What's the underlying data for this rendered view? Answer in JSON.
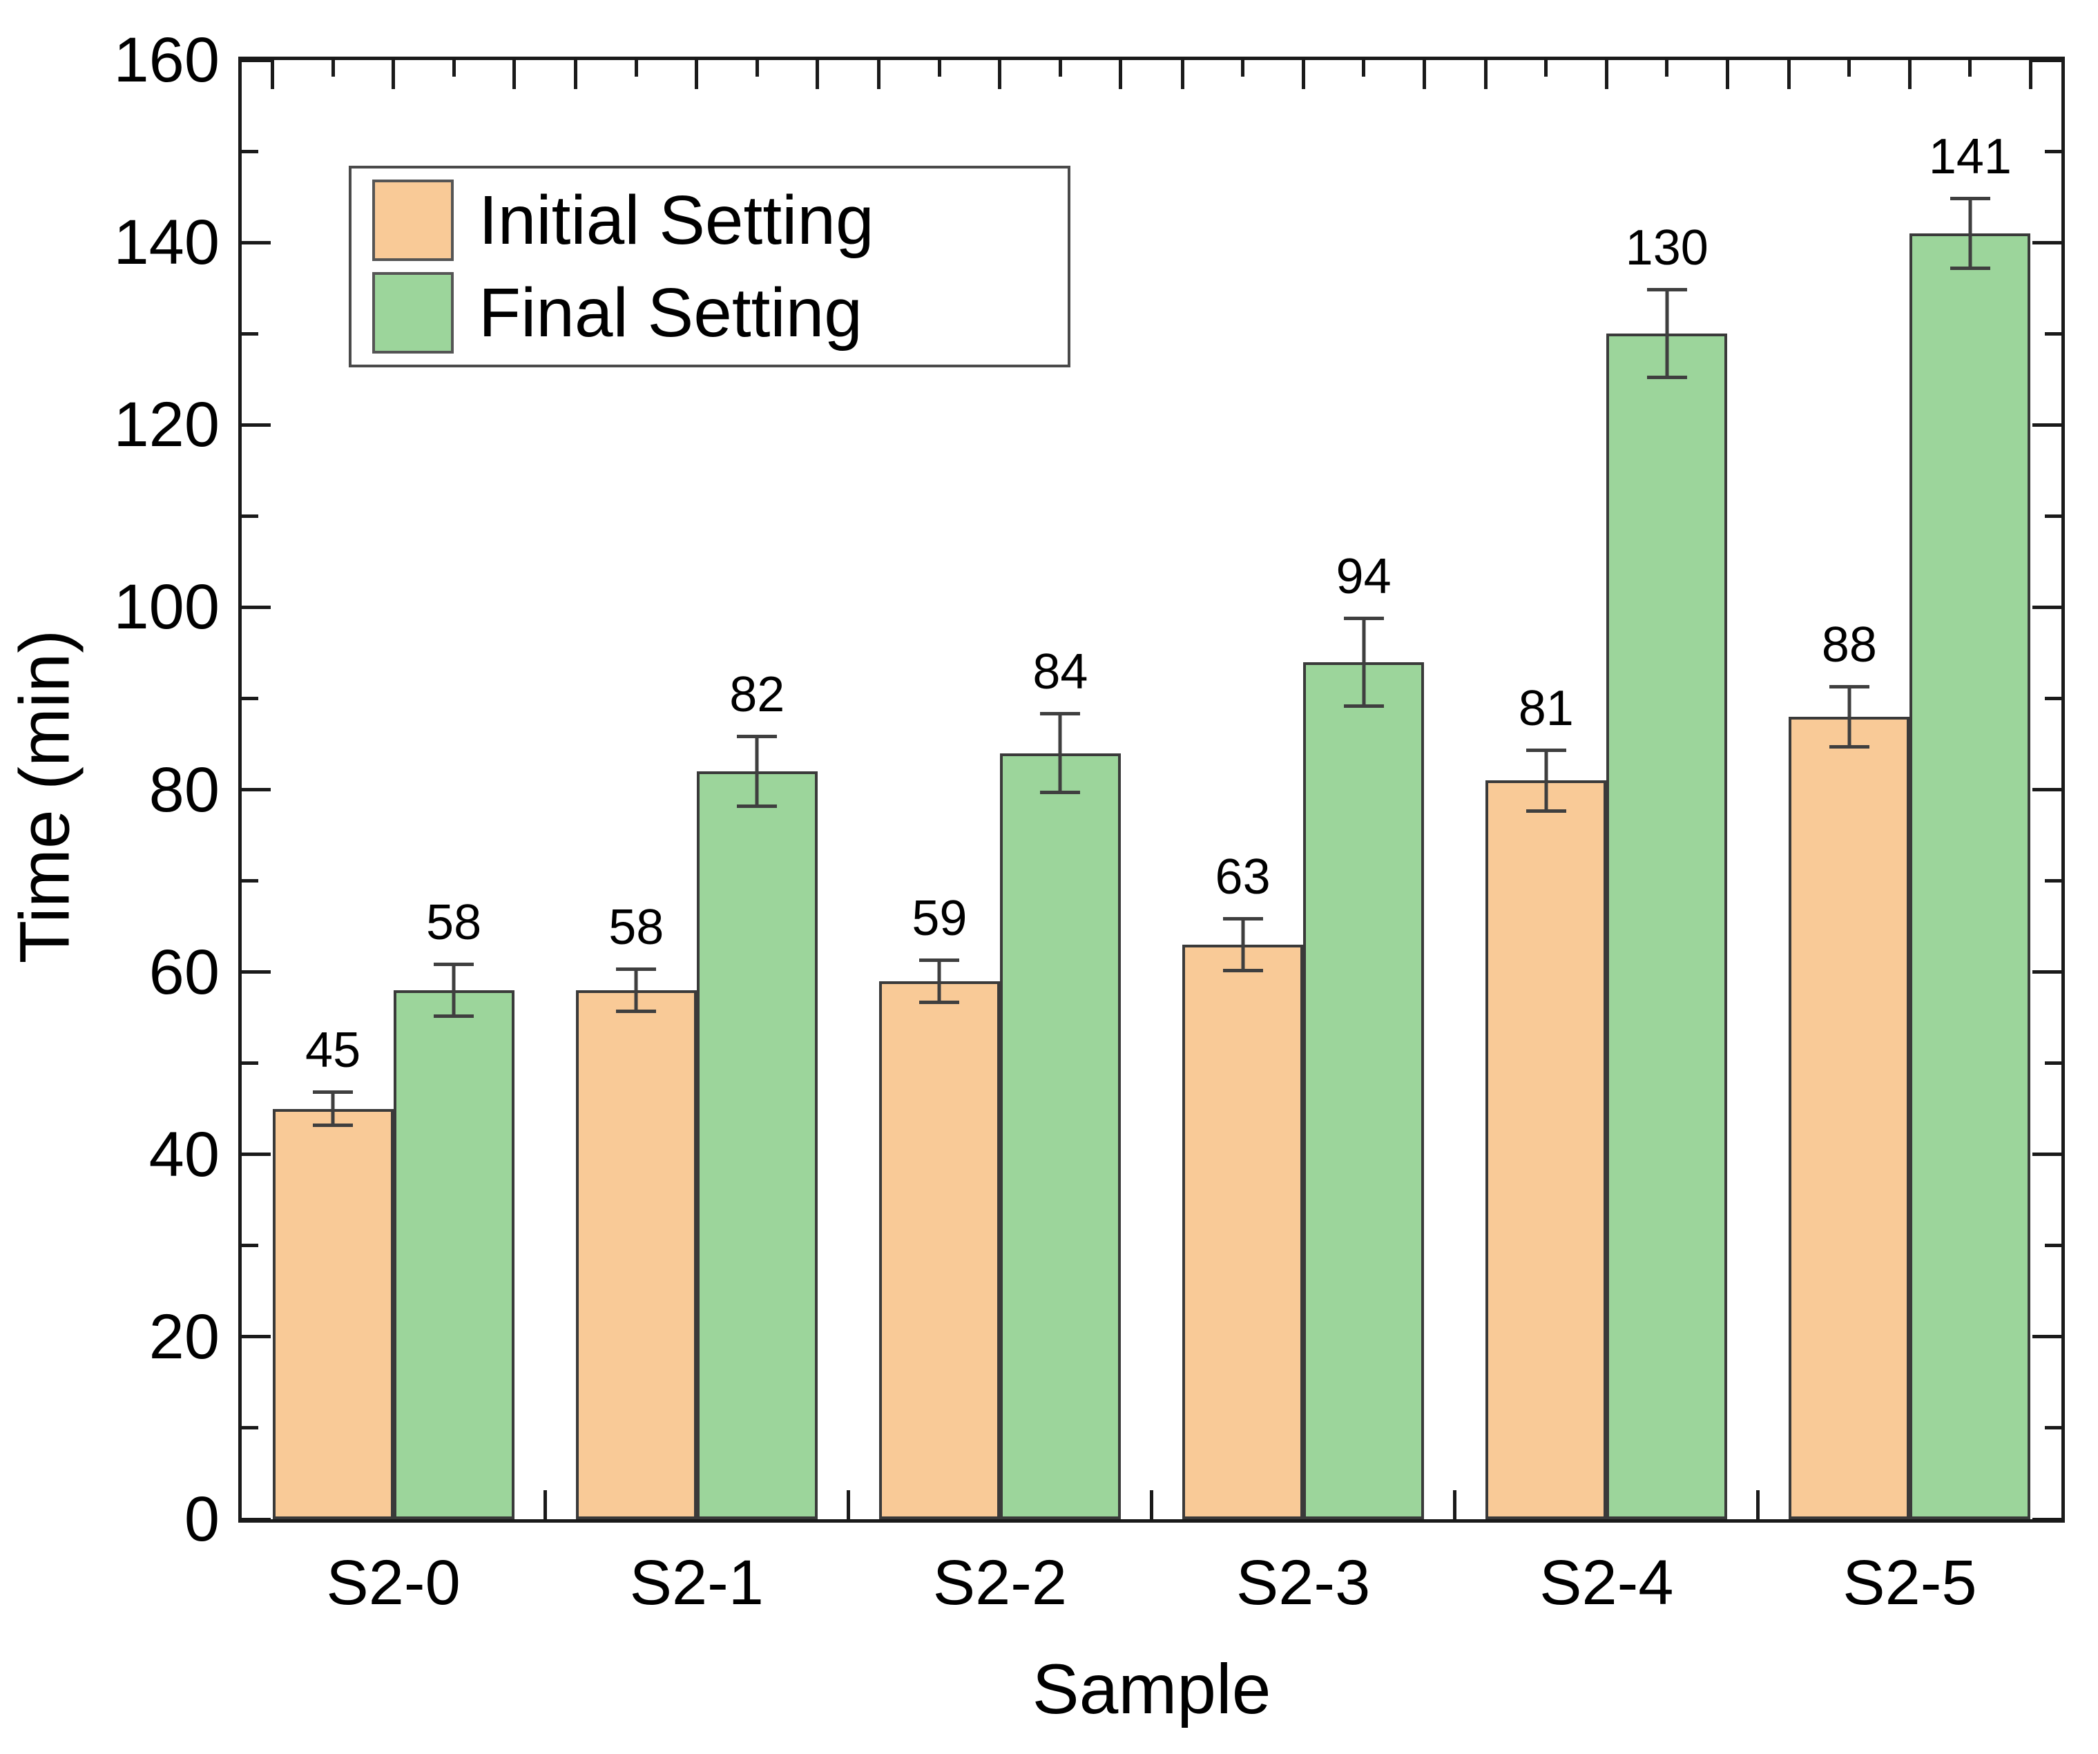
{
  "figure": {
    "y_axis_title": "Time (min)",
    "x_axis_title": "Sample"
  },
  "legend": {
    "items": [
      {
        "label": "Initial Setting"
      },
      {
        "label": "Final Setting"
      }
    ]
  },
  "chart_data": {
    "type": "bar",
    "title": "",
    "xlabel": "Sample",
    "ylabel": "Time (min)",
    "categories": [
      "S2-0",
      "S2-1",
      "S2-2",
      "S2-3",
      "S2-4",
      "S2-5"
    ],
    "series": [
      {
        "name": "Initial Setting",
        "color": "#F9CA97",
        "values": [
          45,
          58,
          59,
          63,
          81,
          88
        ],
        "errors": [
          2,
          2.5,
          2.5,
          3,
          3.5,
          3.5
        ]
      },
      {
        "name": "Final Setting",
        "color": "#9CD59B",
        "values": [
          58,
          82,
          84,
          94,
          130,
          141
        ],
        "errors": [
          3,
          4,
          4.5,
          5,
          5,
          4
        ]
      }
    ],
    "value_labels_shown": true,
    "ylim": [
      0,
      160
    ],
    "y_major_step": 20,
    "y_minor_step": 10,
    "y_major_ticks": [
      0,
      20,
      40,
      60,
      80,
      100,
      120,
      140,
      160
    ],
    "legend_position": "top-left",
    "grid": false,
    "frame": true,
    "bar_edge_color": "#3A3A3A",
    "error_color": "#3F3F3F",
    "axis_color": "#1A1A1A",
    "text_color": "#000000"
  }
}
